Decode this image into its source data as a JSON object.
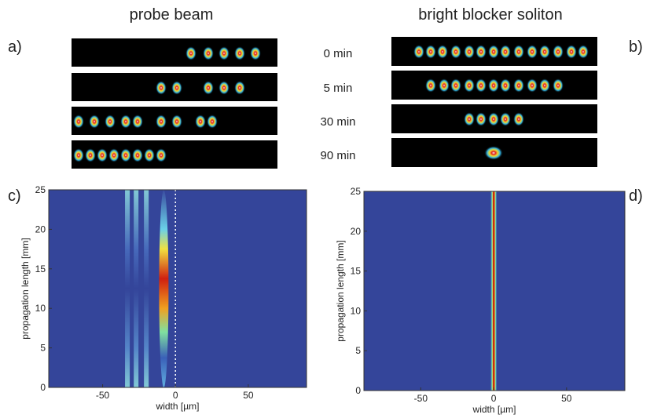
{
  "header": {
    "left_title": "probe beam",
    "right_title": "bright blocker soliton"
  },
  "panel_labels": [
    "a)",
    "b)",
    "c)",
    "d)"
  ],
  "times": [
    "0 min",
    "5 min",
    "30 min",
    "90 min"
  ],
  "plots": [
    {
      "xlabel": "width [µm]",
      "ylabel": "propagation length [mm]",
      "xlim": [
        -87,
        90
      ],
      "xticks": [
        -50,
        0,
        50
      ],
      "ylim": [
        0,
        25
      ],
      "yticks": [
        0,
        5,
        10,
        15,
        20,
        25
      ]
    },
    {
      "xlabel": "width [µm]",
      "ylabel": "propagation length [mm]",
      "xlim": [
        -89,
        90
      ],
      "xticks": [
        -50,
        0,
        50
      ],
      "ylim": [
        0,
        25
      ],
      "yticks": [
        0,
        5,
        10,
        15,
        20,
        25
      ]
    }
  ]
}
